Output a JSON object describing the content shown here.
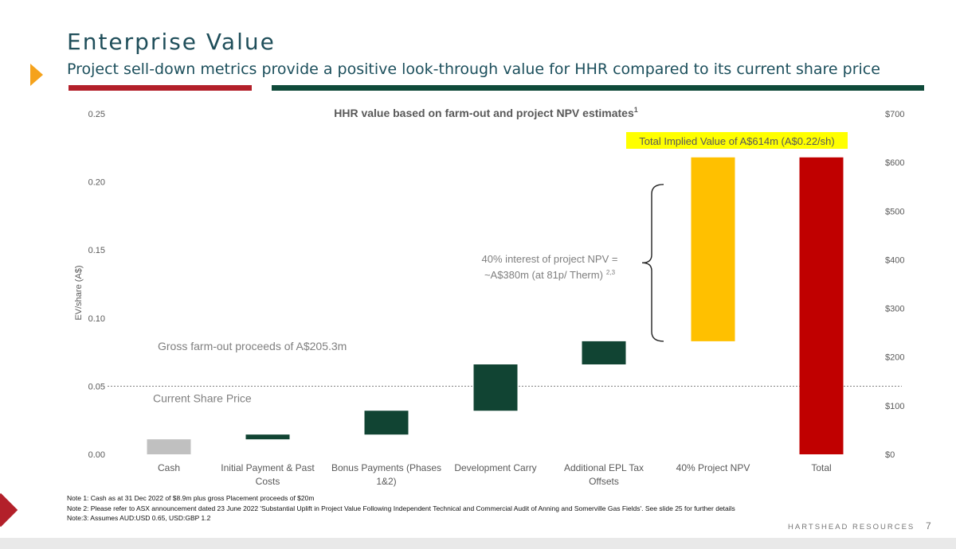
{
  "page": {
    "title": "Enterprise Value",
    "subtitle": "Project sell-down metrics provide a positive look-through value for HHR compared to its current share price",
    "brand": "HARTSHEAD RESOURCES",
    "page_number": "7"
  },
  "notes": [
    "Note 1: Cash as at 31 Dec 2022 of $8.9m plus gross Placement proceeds of $20m",
    "Note 2: Please refer to ASX announcement dated 23 June 2022 'Substantial Uplift in Project Value Following Independent Technical and Commercial Audit of Anning and Somerville Gas Fields'. See slide 25 for further details",
    "Note:3: Assumes AUD:USD 0.65, USD:GBP 1.2"
  ],
  "colors": {
    "cash": "#c0c0c0",
    "step": "#114433",
    "npv": "#ffc000",
    "total": "#c00000",
    "highlight": "#ffff00"
  },
  "chart_data": {
    "type": "bar",
    "subtype": "waterfall",
    "title": "HHR value based on farm-out and project NPV estimates",
    "title_superscript": "1",
    "ylabel": "EV/share (A$)",
    "ylim": [
      0,
      0.25
    ],
    "yticks": [
      "0.00",
      "0.05",
      "0.10",
      "0.15",
      "0.20",
      "0.25"
    ],
    "y2lim": [
      0,
      700
    ],
    "y2ticks": [
      "$0",
      "$100",
      "$200",
      "$300",
      "$400",
      "$500",
      "$600",
      "$700"
    ],
    "categories": [
      "Cash",
      "Initial Payment & Past Costs",
      "Bonus Payments (Phases 1&2)",
      "Development Carry",
      "Additional EPL Tax Offsets",
      "40% Project NPV",
      "Total"
    ],
    "category_lines": [
      [
        "Cash"
      ],
      [
        "Initial Payment & Past",
        "Costs"
      ],
      [
        "Bonus Payments (Phases",
        "1&2)"
      ],
      [
        "Development Carry"
      ],
      [
        "Additional EPL Tax",
        "Offsets"
      ],
      [
        "40% Project NPV"
      ],
      [
        "Total"
      ]
    ],
    "bars": [
      {
        "category": "Cash",
        "bottom": 0.0,
        "top": 0.011,
        "kind": "cash"
      },
      {
        "category": "Initial Payment & Past Costs",
        "bottom": 0.011,
        "top": 0.0145,
        "kind": "step"
      },
      {
        "category": "Bonus Payments (Phases 1&2)",
        "bottom": 0.0145,
        "top": 0.032,
        "kind": "step"
      },
      {
        "category": "Development Carry",
        "bottom": 0.032,
        "top": 0.066,
        "kind": "step"
      },
      {
        "category": "Additional EPL Tax Offsets",
        "bottom": 0.066,
        "top": 0.083,
        "kind": "step"
      },
      {
        "category": "40% Project NPV",
        "bottom": 0.083,
        "top": 0.218,
        "kind": "npv"
      },
      {
        "category": "Total",
        "bottom": 0.0,
        "top": 0.218,
        "kind": "total"
      }
    ],
    "reference_line": {
      "value": 0.05,
      "label": "Current Share Price"
    },
    "annotations": {
      "farmout": "Gross farm-out proceeds of A$205.3m",
      "npv_line1": "40% interest of project NPV =",
      "npv_line2": "~A$380m (at 81p/ Therm)",
      "npv_sup": "2,3",
      "total": "Total Implied Value of A$614m (A$0.22/sh)"
    },
    "grid": false,
    "legend": "none"
  }
}
